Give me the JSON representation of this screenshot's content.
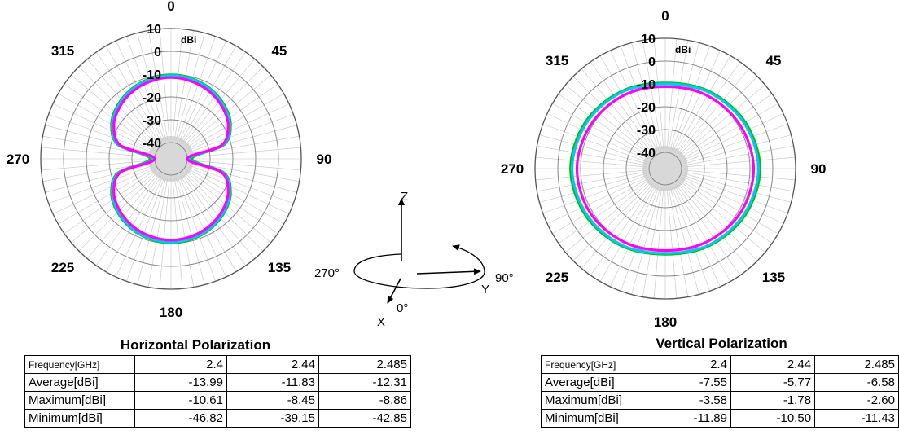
{
  "chart_data": [
    {
      "type": "polar-line",
      "title": "Horizontal Polarization",
      "unit": "dBi",
      "r_ticks": [
        "10",
        "0",
        "-10",
        "-20",
        "-30",
        "-40"
      ],
      "r_range": [
        -40,
        10
      ],
      "angle_labels": [
        {
          "angle": 0,
          "text": "0"
        },
        {
          "angle": 45,
          "text": "45"
        },
        {
          "angle": 90,
          "text": "90"
        },
        {
          "angle": 135,
          "text": "135"
        },
        {
          "angle": 180,
          "text": "180"
        },
        {
          "angle": 225,
          "text": "225"
        },
        {
          "angle": 270,
          "text": "270"
        },
        {
          "angle": 315,
          "text": "315"
        }
      ],
      "series": [
        {
          "color": "#00c000",
          "angles": [
            0,
            15,
            30,
            45,
            60,
            75,
            90,
            105,
            120,
            135,
            150,
            165,
            180,
            195,
            210,
            225,
            240,
            255,
            270,
            285,
            300,
            315,
            330,
            345
          ],
          "values": [
            -10.3,
            -10.8,
            -12,
            -14,
            -17,
            -23,
            -38,
            -23,
            -17,
            -14,
            -12,
            -10.8,
            -10.3,
            -10.8,
            -12,
            -14,
            -17,
            -23,
            -38,
            -23,
            -17,
            -14,
            -12,
            -10.8
          ]
        },
        {
          "color": "#00c8ff",
          "angles": [
            0,
            15,
            30,
            45,
            60,
            75,
            90,
            105,
            120,
            135,
            150,
            165,
            180,
            195,
            210,
            225,
            240,
            255,
            270,
            285,
            300,
            315,
            330,
            345
          ],
          "values": [
            -10.6,
            -11.1,
            -12.3,
            -14.4,
            -17.4,
            -23.5,
            -39,
            -23.5,
            -17.4,
            -14.4,
            -12.3,
            -11.1,
            -10.6,
            -11.1,
            -12.3,
            -14.4,
            -17.4,
            -23.5,
            -39,
            -23.5,
            -17.4,
            -14.4,
            -12.3,
            -11.1
          ]
        },
        {
          "color": "#ff00ff",
          "angles": [
            0,
            15,
            30,
            45,
            60,
            75,
            90,
            105,
            120,
            135,
            150,
            165,
            180,
            195,
            210,
            225,
            240,
            255,
            270,
            285,
            300,
            315,
            330,
            345
          ],
          "values": [
            -11.5,
            -12,
            -13.2,
            -15.2,
            -18.2,
            -24.2,
            -40,
            -24.2,
            -18.2,
            -15.2,
            -13.2,
            -12,
            -11.5,
            -12,
            -13.2,
            -15.2,
            -18.2,
            -24.2,
            -40,
            -24.2,
            -18.2,
            -15.2,
            -13.2,
            -12
          ]
        }
      ],
      "table": {
        "columns": [
          "Frequency[GHz]",
          "2.4",
          "2.44",
          "2.485"
        ],
        "rows": [
          {
            "label": "Average[dBi]",
            "values": [
              "-13.99",
              "-11.83",
              "-12.31"
            ]
          },
          {
            "label": "Maximum[dBi]",
            "values": [
              "-10.61",
              "-8.45",
              "-8.86"
            ]
          },
          {
            "label": "Minimum[dBi]",
            "values": [
              "-46.82",
              "-39.15",
              "-42.85"
            ]
          }
        ]
      }
    },
    {
      "type": "polar-line",
      "title": "Vertical Polarization",
      "unit": "dBi",
      "r_ticks": [
        "10",
        "0",
        "-10",
        "-20",
        "-30",
        "-40"
      ],
      "r_range": [
        -40,
        10
      ],
      "angle_labels": [
        {
          "angle": 0,
          "text": "0"
        },
        {
          "angle": 45,
          "text": "45"
        },
        {
          "angle": 90,
          "text": "90"
        },
        {
          "angle": 135,
          "text": "135"
        },
        {
          "angle": 180,
          "text": "180"
        },
        {
          "angle": 225,
          "text": "225"
        },
        {
          "angle": 270,
          "text": "270"
        },
        {
          "angle": 315,
          "text": "315"
        }
      ],
      "series": [
        {
          "color": "#00c000",
          "angles": [
            0,
            30,
            60,
            90,
            120,
            150,
            180,
            210,
            240,
            270,
            300,
            330
          ],
          "values": [
            -9.6,
            -8.2,
            -6.6,
            -5.6,
            -6.6,
            -8.2,
            -9.6,
            -8.2,
            -6.6,
            -5.6,
            -6.6,
            -8.2
          ]
        },
        {
          "color": "#00c8ff",
          "angles": [
            0,
            30,
            60,
            90,
            120,
            150,
            180,
            210,
            240,
            270,
            300,
            330
          ],
          "values": [
            -10,
            -8.6,
            -7.2,
            -6.3,
            -7.2,
            -8.6,
            -10,
            -8.6,
            -7.2,
            -6.3,
            -7.2,
            -8.6
          ]
        },
        {
          "color": "#ff00ff",
          "angles": [
            0,
            30,
            60,
            90,
            120,
            150,
            180,
            210,
            240,
            270,
            300,
            330
          ],
          "values": [
            -11.2,
            -10.2,
            -9.2,
            -8.4,
            -8.9,
            -10.2,
            -11.2,
            -10.2,
            -8.9,
            -8.4,
            -9.2,
            -10.2
          ]
        }
      ],
      "table": {
        "columns": [
          "Frequency[GHz]",
          "2.4",
          "2.44",
          "2.485"
        ],
        "rows": [
          {
            "label": "Average[dBi]",
            "values": [
              "-7.55",
              "-5.77",
              "-6.58"
            ]
          },
          {
            "label": "Maximum[dBi]",
            "values": [
              "-3.58",
              "-1.78",
              "-2.60"
            ]
          },
          {
            "label": "Minimum[dBi]",
            "values": [
              "-11.89",
              "-10.50",
              "-11.43"
            ]
          }
        ]
      }
    }
  ],
  "axes_diagram": {
    "z_label": "Z",
    "x_label": "X",
    "y_label": "Y",
    "angle_0": "0°",
    "angle_90": "90°",
    "angle_270": "270°"
  }
}
